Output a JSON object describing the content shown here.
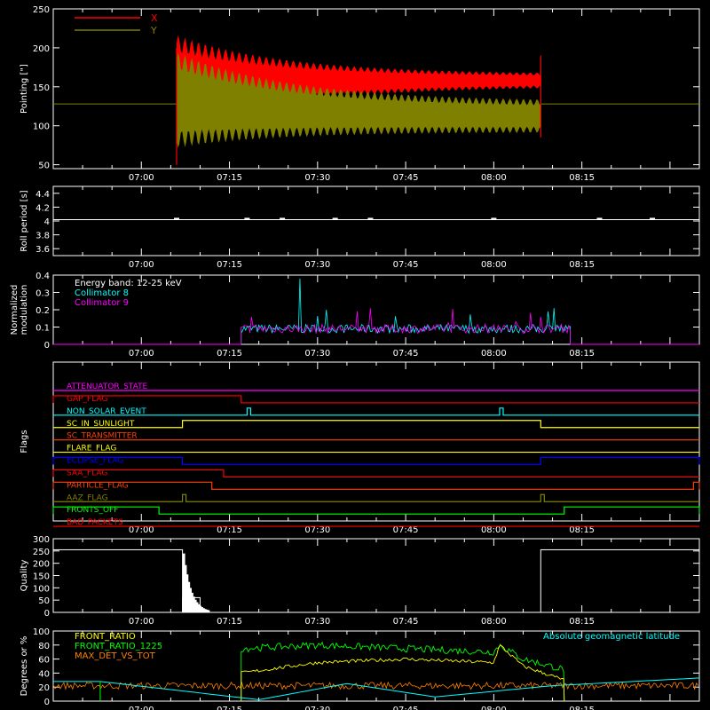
{
  "time_ticks": [
    "07:00",
    "07:15",
    "07:30",
    "07:45",
    "08:00",
    "08:15"
  ],
  "colors": {
    "background": "#000000",
    "axes": "#ffffff",
    "x_series": "#ff0000",
    "y_series": "#808000",
    "collimator8": "#00ffff",
    "collimator9": "#ff00ff",
    "front_ratio": "#ffff00",
    "front_ratio_1225": "#00ff00",
    "max_det": "#ff8000",
    "geomag": "#00ffff"
  },
  "chart_data": [
    {
      "id": "pointing",
      "type": "line",
      "ylabel": "Pointing [\"]",
      "ylim": [
        45,
        250
      ],
      "yticks": [
        50,
        100,
        150,
        200,
        250
      ],
      "legend": [
        {
          "name": "X",
          "color": "#ff0000"
        },
        {
          "name": "Y",
          "color": "#808000"
        }
      ],
      "baseline_value": 128,
      "time_range": [
        "07:06",
        "08:08"
      ],
      "series": [
        {
          "name": "X",
          "envelope_start": [
            50,
            205
          ],
          "envelope_end": [
            150,
            170
          ],
          "center": [
            128,
            155
          ]
        },
        {
          "name": "Y",
          "envelope_start": [
            55,
            210
          ],
          "envelope_end": [
            100,
            150
          ],
          "center": [
            160,
            120
          ]
        }
      ]
    },
    {
      "id": "roll_period",
      "type": "line",
      "ylabel": "Roll period [s]",
      "ylim": [
        3.5,
        4.5
      ],
      "yticks": [
        3.6,
        3.8,
        4.0,
        4.2,
        4.4
      ],
      "value": 4.02
    },
    {
      "id": "modulation",
      "type": "line",
      "ylabel": [
        "Normalized",
        "modulation"
      ],
      "ylim": [
        0,
        0.4
      ],
      "yticks": [
        0.0,
        0.1,
        0.2,
        0.3,
        0.4
      ],
      "legend": [
        {
          "name": "Energy band: 12-25 keV",
          "color": "#ffffff"
        },
        {
          "name": "Collimator 8",
          "color": "#00ffff"
        },
        {
          "name": "Collimator 9",
          "color": "#ff00ff"
        }
      ],
      "active_range": [
        "07:17",
        "08:13"
      ],
      "mean": 0.09,
      "peak": 0.38
    },
    {
      "id": "flags",
      "type": "line",
      "ylabel": "Flags",
      "flags": [
        {
          "name": "ATTENUATOR_STATE",
          "color": "#ff00ff",
          "hi": [],
          "lo": []
        },
        {
          "name": "GAP_FLAG",
          "color": "#ff0000",
          "hi": [
            "06:45",
            "07:17"
          ],
          "lo": []
        },
        {
          "name": "NON_SOLAR_EVENT",
          "color": "#00ffff",
          "pulses": [
            "07:18",
            "08:01"
          ]
        },
        {
          "name": "SC_IN_SUNLIGHT",
          "color": "#ffff00",
          "hi": [
            "07:07",
            "08:08"
          ]
        },
        {
          "name": "SC_TRANSMITTER",
          "color": "#ff4000",
          "hi": []
        },
        {
          "name": "FLARE_FLAG",
          "color": "#ffff00",
          "hi": []
        },
        {
          "name": "ECLIPSE_FLAG",
          "color": "#0000ff",
          "hi": [
            "06:45",
            "07:07",
            "08:08",
            "08:35"
          ]
        },
        {
          "name": "SAA_FLAG",
          "color": "#ff0000",
          "hi": [
            "06:45",
            "07:14"
          ]
        },
        {
          "name": "PARTICLE_FLAG",
          "color": "#ff4000",
          "hi": [
            "06:45",
            "07:12",
            "08:34",
            "08:35"
          ]
        },
        {
          "name": "AAZ_FLAG",
          "color": "#808000",
          "pulses": [
            "07:07",
            "08:08"
          ]
        },
        {
          "name": "FRONTS_OFF",
          "color": "#00ff00",
          "hi": [
            "06:45",
            "07:03",
            "08:12",
            "08:35"
          ]
        },
        {
          "name": "BAD_PACKETS",
          "color": "#ff0000",
          "hi": []
        }
      ]
    },
    {
      "id": "quality",
      "type": "bar",
      "ylabel": "Quality",
      "ylim": [
        0,
        300
      ],
      "yticks": [
        0,
        50,
        100,
        150,
        200,
        250,
        300
      ],
      "segments": [
        {
          "from": "06:45",
          "to": "07:07",
          "value": 255
        },
        {
          "from": "07:07",
          "to": "07:10",
          "value": 60
        },
        {
          "from": "08:08",
          "to": "08:35",
          "value": 255
        }
      ]
    },
    {
      "id": "ratios",
      "type": "line",
      "ylabel": "Degrees or %",
      "ylim": [
        0,
        100
      ],
      "yticks": [
        0,
        20,
        40,
        60,
        80,
        100
      ],
      "legend": [
        {
          "name": "FRONT_RATIO",
          "color": "#ffff00"
        },
        {
          "name": "FRONT_RATIO_1225",
          "color": "#00ff00"
        },
        {
          "name": "MAX_DET_VS_TOT",
          "color": "#ff8000"
        }
      ],
      "annotation": "Absolute geomagnetic latitude",
      "front_ratio": [
        [
          "07:17",
          40
        ],
        [
          "07:30",
          55
        ],
        [
          "07:45",
          60
        ],
        [
          "08:00",
          55
        ],
        [
          "08:01",
          80
        ],
        [
          "08:05",
          50
        ],
        [
          "08:12",
          30
        ]
      ],
      "front_ratio_1225": [
        [
          "07:17",
          75
        ],
        [
          "07:30",
          80
        ],
        [
          "07:45",
          75
        ],
        [
          "08:00",
          70
        ],
        [
          "08:01",
          80
        ],
        [
          "08:05",
          60
        ],
        [
          "08:12",
          45
        ]
      ],
      "max_det_vs_tot": 22,
      "geomag": [
        [
          "06:45",
          28
        ],
        [
          "06:53",
          28
        ],
        [
          "07:20",
          2
        ],
        [
          "07:35",
          25
        ],
        [
          "07:50",
          6
        ],
        [
          "08:10",
          22
        ],
        [
          "08:35",
          33
        ]
      ]
    }
  ]
}
